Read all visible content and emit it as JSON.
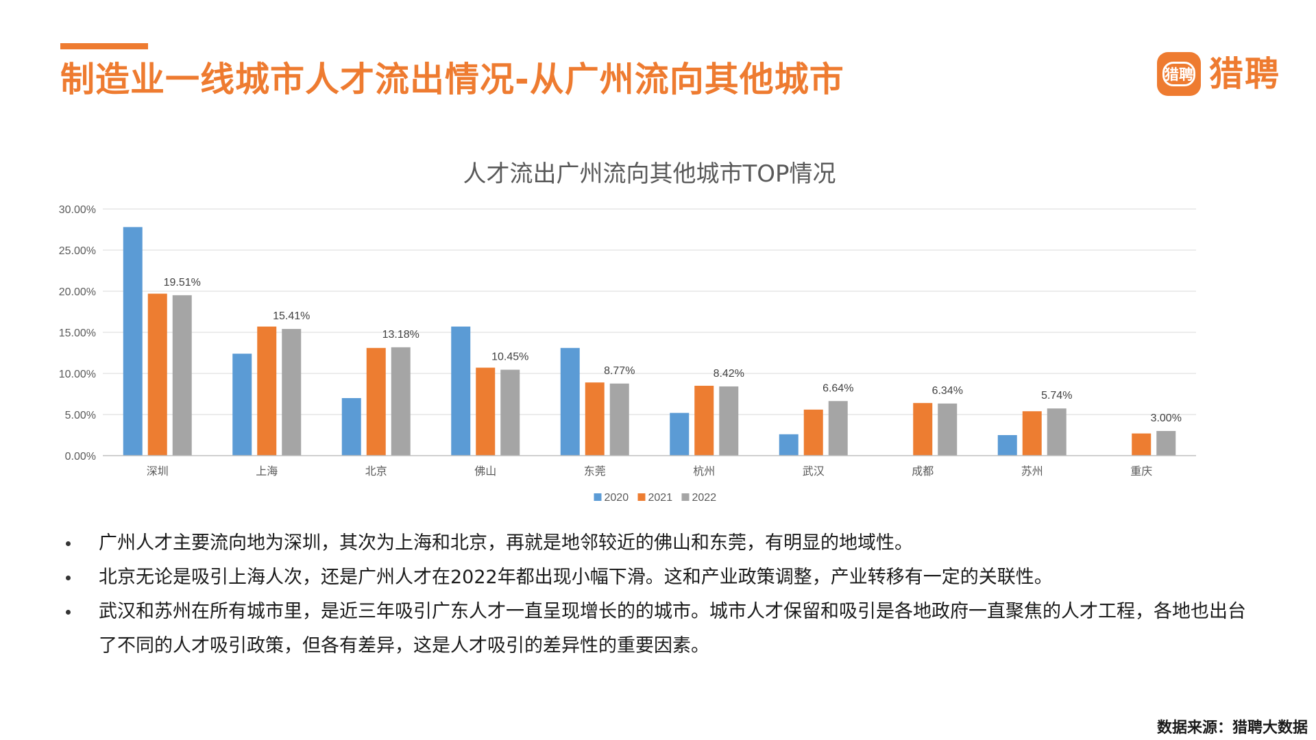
{
  "colors": {
    "accent": "#EE7B30",
    "title": "#EE7B30",
    "s2020": "#5B9BD5",
    "s2021": "#ED7D31",
    "s2022": "#A5A5A5"
  },
  "header": {
    "title": "制造业一线城市人才流出情况-从广州流向其他城市",
    "logo_badge": "猎聘",
    "logo_text": "猎聘"
  },
  "chart_data": {
    "type": "bar",
    "title": "人才流出广州流向其他城市TOP情况",
    "categories": [
      "深圳",
      "上海",
      "北京",
      "佛山",
      "东莞",
      "杭州",
      "武汉",
      "成都",
      "苏州",
      "重庆"
    ],
    "series": [
      {
        "name": "2020",
        "values": [
          27.8,
          12.4,
          7.0,
          15.7,
          13.1,
          5.2,
          2.6,
          null,
          2.5,
          null
        ]
      },
      {
        "name": "2021",
        "values": [
          19.7,
          15.7,
          13.1,
          10.7,
          8.9,
          8.5,
          5.6,
          6.4,
          5.4,
          2.7
        ]
      },
      {
        "name": "2022",
        "values": [
          19.51,
          15.41,
          13.18,
          10.45,
          8.77,
          8.42,
          6.64,
          6.34,
          5.74,
          3.0
        ]
      }
    ],
    "data_labels": [
      "19.51%",
      "15.41%",
      "13.18%",
      "10.45%",
      "8.77%",
      "8.42%",
      "6.64%",
      "6.34%",
      "5.74%",
      "3.00%"
    ],
    "data_labels_series": "2022",
    "yticks": [
      "0.00%",
      "5.00%",
      "10.00%",
      "15.00%",
      "20.00%",
      "25.00%",
      "30.00%"
    ],
    "ylim": [
      0,
      30
    ],
    "grid": true,
    "legend": "bottom",
    "xlabel": "",
    "ylabel": ""
  },
  "bullets": [
    "广州人才主要流向地为深圳，其次为上海和北京，再就是地邻较近的佛山和东莞，有明显的地域性。",
    "北京无论是吸引上海人次，还是广州人才在2022年都出现小幅下滑。这和产业政策调整，产业转移有一定的关联性。",
    "武汉和苏州在所有城市里，是近三年吸引广东人才一直呈现增长的的城市。城市人才保留和吸引是各地政府一直聚焦的人才工程，各地也出台了不同的人才吸引政策，但各有差异，这是人才吸引的差异性的重要因素。"
  ],
  "footer": {
    "source": "数据来源：猎聘大数据"
  }
}
